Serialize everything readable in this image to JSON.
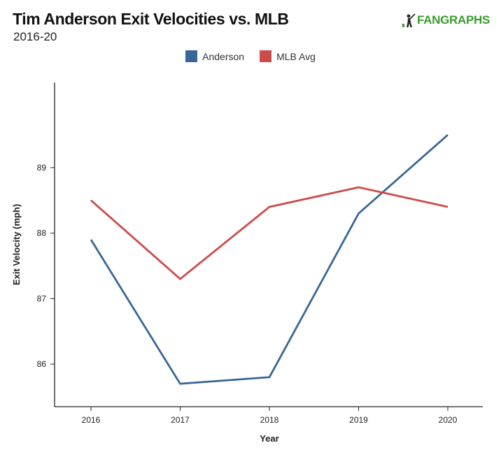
{
  "header": {
    "title": "Tim Anderson Exit Velocities vs. MLB",
    "subtitle": "2016-20",
    "logo_text_a": "FAN",
    "logo_text_b": "GRAPHS"
  },
  "colors": {
    "anderson": "#3a6696",
    "mlb": "#cc4b4b",
    "axis": "#222222",
    "logo": "#3a9b2e"
  },
  "chart_data": {
    "type": "line",
    "title": "Tim Anderson Exit Velocities vs. MLB",
    "subtitle": "2016-20",
    "xlabel": "Year",
    "ylabel": "Exit Velocity (mph)",
    "categories": [
      "2016",
      "2017",
      "2018",
      "2019",
      "2020"
    ],
    "y_ticks": [
      86,
      87,
      88,
      89
    ],
    "ylim": [
      85.35,
      90.3
    ],
    "grid": false,
    "legend_position": "top-center",
    "series": [
      {
        "name": "Anderson",
        "color": "#3a6696",
        "values": [
          87.9,
          85.7,
          85.8,
          88.3,
          89.5
        ]
      },
      {
        "name": "MLB Avg",
        "color": "#cc4b4b",
        "values": [
          88.5,
          87.3,
          88.4,
          88.7,
          88.4
        ]
      }
    ]
  }
}
